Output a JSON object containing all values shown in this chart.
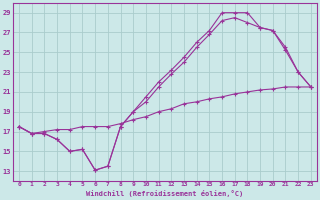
{
  "xlabel": "Windchill (Refroidissement éolien,°C)",
  "bg_color": "#cce8e8",
  "grid_color": "#aacccc",
  "line_color": "#993399",
  "xlim": [
    -0.5,
    23.5
  ],
  "ylim": [
    12,
    30
  ],
  "yticks": [
    13,
    15,
    17,
    19,
    21,
    23,
    25,
    27,
    29
  ],
  "xticks": [
    0,
    1,
    2,
    3,
    4,
    5,
    6,
    7,
    8,
    9,
    10,
    11,
    12,
    13,
    14,
    15,
    16,
    17,
    18,
    19,
    20,
    21,
    22,
    23
  ],
  "curve1_x": [
    0,
    1,
    2,
    3,
    4,
    5,
    6,
    7,
    8,
    9,
    10,
    11,
    12,
    13,
    14,
    15,
    16,
    17,
    18,
    19,
    20,
    21,
    22,
    23
  ],
  "curve1_y": [
    17.5,
    16.8,
    16.8,
    16.2,
    15.0,
    15.2,
    13.1,
    13.5,
    17.5,
    19.0,
    20.5,
    22.0,
    23.2,
    24.5,
    26.0,
    27.2,
    29.0,
    29.0,
    29.0,
    27.5,
    27.2,
    25.2,
    23.0,
    21.5
  ],
  "curve2_x": [
    0,
    1,
    2,
    3,
    4,
    5,
    6,
    7,
    8,
    9,
    10,
    11,
    12,
    13,
    14,
    15,
    16,
    17,
    18,
    19,
    20,
    21,
    22,
    23
  ],
  "curve2_y": [
    17.5,
    16.8,
    16.8,
    16.2,
    15.0,
    15.2,
    13.1,
    13.5,
    17.5,
    19.0,
    20.0,
    21.5,
    22.8,
    24.0,
    25.5,
    26.8,
    28.2,
    28.5,
    28.0,
    27.5,
    27.2,
    25.5,
    23.0,
    21.5
  ],
  "curve3_x": [
    0,
    1,
    2,
    3,
    4,
    5,
    6,
    7,
    8,
    9,
    10,
    11,
    12,
    13,
    14,
    15,
    16,
    17,
    18,
    19,
    20,
    21,
    22,
    23
  ],
  "curve3_y": [
    17.5,
    16.8,
    17.0,
    17.2,
    17.2,
    17.5,
    17.5,
    17.5,
    17.8,
    18.2,
    18.5,
    19.0,
    19.3,
    19.8,
    20.0,
    20.3,
    20.5,
    20.8,
    21.0,
    21.2,
    21.3,
    21.5,
    21.5,
    21.5
  ]
}
